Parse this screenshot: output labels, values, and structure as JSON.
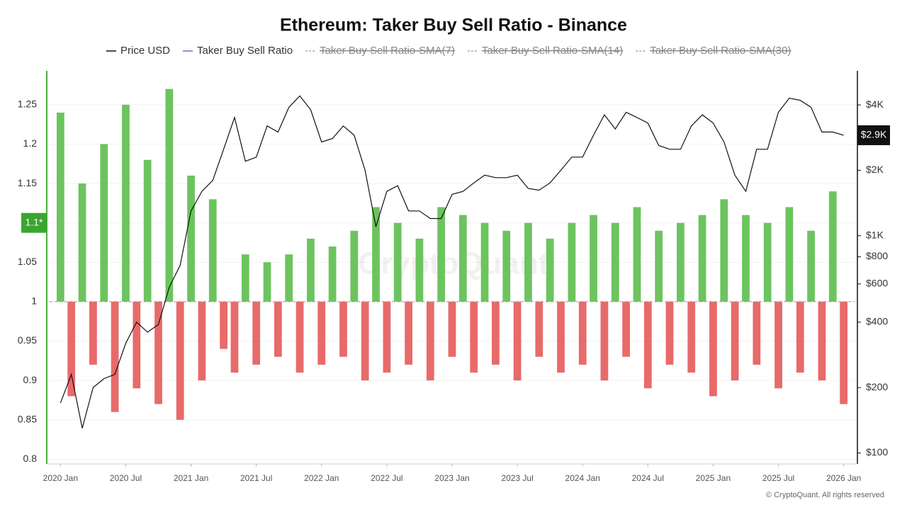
{
  "chart_data": {
    "type": "bar-line",
    "title": "Ethereum: Taker Buy Sell Ratio - Binance",
    "footer": "© CryptoQuant. All rights reserved",
    "watermark": "CryptoQuant",
    "x": [
      "2020-01",
      "2020-02",
      "2020-03",
      "2020-04",
      "2020-05",
      "2020-06",
      "2020-07",
      "2020-08",
      "2020-09",
      "2020-10",
      "2020-11",
      "2020-12",
      "2021-01",
      "2021-02",
      "2021-03",
      "2021-04",
      "2021-05",
      "2021-06",
      "2021-07",
      "2021-08",
      "2021-09",
      "2021-10",
      "2021-11",
      "2021-12",
      "2022-01",
      "2022-02",
      "2022-03",
      "2022-04",
      "2022-05",
      "2022-06",
      "2022-07",
      "2022-08",
      "2022-09",
      "2022-10",
      "2022-11",
      "2022-12",
      "2023-01",
      "2023-02",
      "2023-03",
      "2023-04",
      "2023-05",
      "2023-06",
      "2023-07",
      "2023-08",
      "2023-09",
      "2023-10",
      "2023-11",
      "2023-12",
      "2024-01",
      "2024-02",
      "2024-03",
      "2024-04",
      "2024-05",
      "2024-06",
      "2024-07",
      "2024-08",
      "2024-09",
      "2024-10",
      "2024-11",
      "2024-12",
      "2025-01",
      "2025-02",
      "2025-03",
      "2025-04",
      "2025-05",
      "2025-06",
      "2025-07",
      "2025-08",
      "2025-09",
      "2025-10",
      "2025-11",
      "2025-12",
      "2026-01"
    ],
    "xlim": [
      "2019-12",
      "2026-02"
    ],
    "xticks": [
      {
        "value": "2020-01",
        "label": "2020 Jan"
      },
      {
        "value": "2020-07",
        "label": "2020 Jul"
      },
      {
        "value": "2021-01",
        "label": "2021 Jan"
      },
      {
        "value": "2021-07",
        "label": "2021 Jul"
      },
      {
        "value": "2022-01",
        "label": "2022 Jan"
      },
      {
        "value": "2022-07",
        "label": "2022 Jul"
      },
      {
        "value": "2023-01",
        "label": "2023 Jan"
      },
      {
        "value": "2023-07",
        "label": "2023 Jul"
      },
      {
        "value": "2024-01",
        "label": "2024 Jan"
      },
      {
        "value": "2024-07",
        "label": "2024 Jul"
      },
      {
        "value": "2025-01",
        "label": "2025 Jan"
      },
      {
        "value": "2025-07",
        "label": "2025 Jul"
      },
      {
        "value": "2026-01",
        "label": "2026 Jan"
      }
    ],
    "ylim": [
      0.794,
      1.293
    ],
    "yticks": [
      0.8,
      0.85,
      0.9,
      0.95,
      1,
      1.05,
      1.1,
      1.15,
      1.2,
      1.25
    ],
    "y2lim": [
      89,
      5740
    ],
    "y2scale": "log",
    "y2ticks": [
      {
        "value": 100,
        "label": "$100"
      },
      {
        "value": 200,
        "label": "$200"
      },
      {
        "value": 400,
        "label": "$400"
      },
      {
        "value": 600,
        "label": "$600"
      },
      {
        "value": 800,
        "label": "$800"
      },
      {
        "value": 1000,
        "label": "$1K"
      },
      {
        "value": 2000,
        "label": "$2K"
      },
      {
        "value": 4000,
        "label": "$4K"
      }
    ],
    "baseline": 1,
    "grid": true,
    "series": [
      {
        "name": "Price USD",
        "type": "line",
        "axis": "y2",
        "color": "#111111",
        "values": [
          170,
          230,
          130,
          200,
          220,
          230,
          320,
          400,
          360,
          390,
          580,
          730,
          1300,
          1600,
          1800,
          2500,
          3500,
          2200,
          2300,
          3200,
          3000,
          3900,
          4400,
          3800,
          2700,
          2800,
          3200,
          2900,
          2000,
          1100,
          1600,
          1700,
          1300,
          1300,
          1200,
          1200,
          1550,
          1600,
          1750,
          1900,
          1850,
          1850,
          1900,
          1650,
          1620,
          1750,
          2000,
          2300,
          2300,
          2900,
          3600,
          3100,
          3700,
          3500,
          3300,
          2600,
          2500,
          2500,
          3200,
          3600,
          3300,
          2700,
          1900,
          1600,
          2500,
          2500,
          3700,
          4300,
          4200,
          3900,
          3000,
          3000,
          2900
        ]
      },
      {
        "name": "Taker Buy Sell Ratio",
        "type": "bar",
        "color": "#6b6bd6",
        "positive_color": "#6cc45e",
        "negative_color": "#e86a6a",
        "values": [
          1.24,
          0.88,
          1.15,
          0.92,
          1.2,
          0.86,
          1.25,
          0.89,
          1.18,
          0.87,
          1.27,
          0.85,
          1.16,
          0.9,
          1.13,
          0.94,
          0.91,
          1.06,
          0.92,
          1.05,
          0.93,
          1.06,
          0.91,
          1.08,
          0.92,
          1.07,
          0.93,
          1.09,
          0.9,
          1.12,
          0.91,
          1.1,
          0.92,
          1.08,
          0.9,
          1.12,
          0.93,
          1.11,
          0.91,
          1.1,
          0.92,
          1.09,
          0.9,
          1.1,
          0.93,
          1.08,
          0.91,
          1.1,
          0.92,
          1.11,
          0.9,
          1.1,
          0.93,
          1.12,
          0.89,
          1.09,
          0.92,
          1.1,
          0.91,
          1.11,
          0.88,
          1.13,
          0.9,
          1.11,
          0.92,
          1.1,
          0.89,
          1.12,
          0.91,
          1.09,
          0.9,
          1.14,
          0.87
        ]
      },
      {
        "name": "Taker Buy Sell Ratio-SMA(7)",
        "type": "line",
        "color": "#aaaaaa",
        "hidden": true
      },
      {
        "name": "Taker Buy Sell Ratio-SMA(14)",
        "type": "line",
        "color": "#aaaaaa",
        "hidden": true
      },
      {
        "name": "Taker Buy Sell Ratio-SMA(30)",
        "type": "line",
        "color": "#aaaaaa",
        "hidden": true
      }
    ],
    "markers": [
      {
        "axis": "y",
        "value": 1.1,
        "label": "1.1*",
        "color": "#3aa52f"
      },
      {
        "axis": "y2",
        "value": 2900,
        "label": "$2.9K",
        "color": "#111111"
      }
    ]
  }
}
